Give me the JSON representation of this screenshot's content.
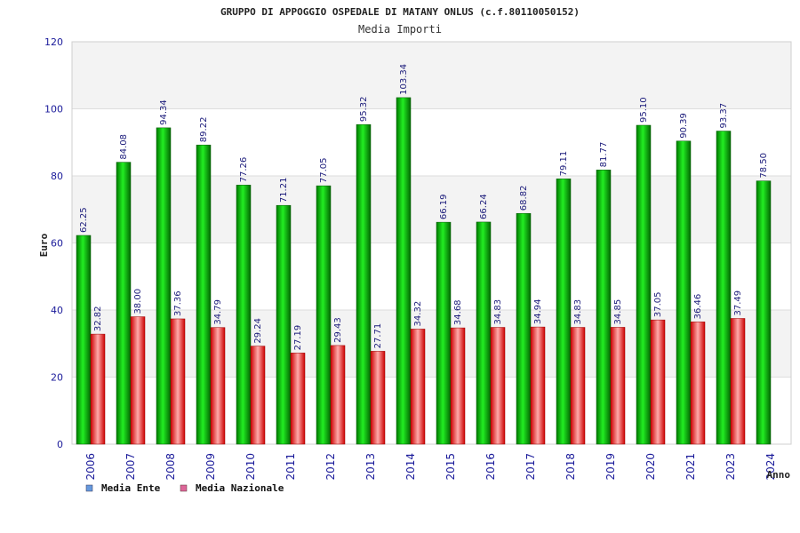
{
  "chart_data": {
    "type": "bar",
    "title": "GRUPPO DI APPOGGIO OSPEDALE DI MATANY ONLUS (c.f.80110050152)",
    "subtitle": "Media Importi",
    "ylabel": "Euro",
    "xlabel": "Anno",
    "ylim": [
      0,
      120
    ],
    "yticks": [
      0,
      20,
      40,
      60,
      80,
      100,
      120
    ],
    "grid": true,
    "legend_position": "bottom-left",
    "categories": [
      "2006",
      "2007",
      "2008",
      "2009",
      "2010",
      "2011",
      "2012",
      "2013",
      "2014",
      "2015",
      "2016",
      "2017",
      "2018",
      "2019",
      "2020",
      "2021",
      "2023",
      "2024"
    ],
    "series": [
      {
        "name": "Media Ente",
        "color": "#00aa00",
        "legend_color": "#6699dd",
        "values": [
          62.25,
          84.08,
          94.34,
          89.22,
          77.26,
          71.21,
          77.05,
          95.32,
          103.34,
          66.19,
          66.24,
          68.82,
          79.11,
          81.77,
          95.1,
          90.39,
          93.37,
          78.5
        ],
        "labels": [
          "62.25",
          "84.08",
          "94.34",
          "89.22",
          "77.26",
          "71.21",
          "77.05",
          "95.32",
          "103.34",
          "66.19",
          "66.24",
          "68.82",
          "79.11",
          "81.77",
          "95.10",
          "90.39",
          "93.37",
          "78.50"
        ]
      },
      {
        "name": "Media Nazionale",
        "color": "#dd1111",
        "legend_color": "#dd6699",
        "values": [
          32.82,
          38.0,
          37.36,
          34.79,
          29.24,
          27.19,
          29.43,
          27.71,
          34.32,
          34.68,
          34.83,
          34.94,
          34.83,
          34.85,
          37.05,
          36.46,
          37.49,
          null
        ],
        "labels": [
          "32.82",
          "38.00",
          "37.36",
          "34.79",
          "29.24",
          "27.19",
          "29.43",
          "27.71",
          "34.32",
          "34.68",
          "34.83",
          "34.94",
          "34.83",
          "34.85",
          "37.05",
          "36.46",
          "37.49",
          ""
        ]
      }
    ]
  }
}
